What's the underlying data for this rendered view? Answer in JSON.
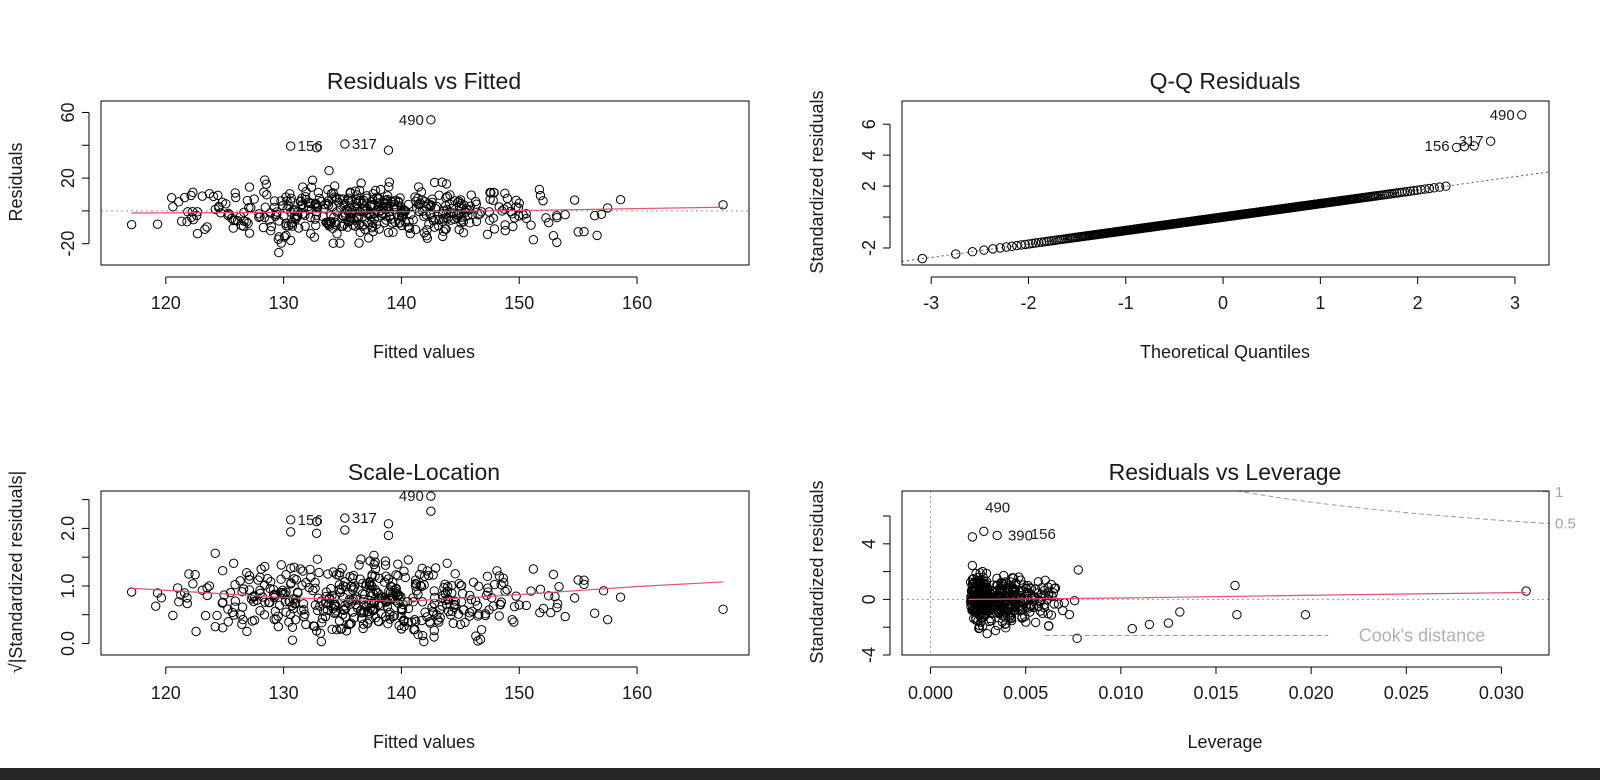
{
  "colors": {
    "points": "#000000",
    "smooth": "#df536b",
    "reference": "#9a9a9a",
    "cook": "#9a9a9a",
    "frame": "#000000"
  },
  "chart_data": [
    {
      "id": "resid_fitted",
      "type": "scatter",
      "title": "Residuals vs Fitted",
      "xlabel": "Fitted values",
      "ylabel": "Residuals",
      "xlim": [
        114.5,
        169.5
      ],
      "ylim": [
        -33,
        67
      ],
      "xticks": [
        120,
        130,
        140,
        150,
        160
      ],
      "yticks": [
        -20,
        20,
        60
      ],
      "yticks_minor": [
        0,
        40
      ],
      "refline_h": 0,
      "points": [
        [
          117.1,
          -8.4
        ],
        [
          119.3,
          -8.1
        ],
        [
          121.8,
          -6.6
        ],
        [
          123.5,
          -9.8
        ],
        [
          120.6,
          2.5
        ],
        [
          121.1,
          5.5
        ],
        [
          121.6,
          8.1
        ],
        [
          122.3,
          11.3
        ],
        [
          123.1,
          9.0
        ],
        [
          123.7,
          10.5
        ],
        [
          124.2,
          0.9
        ],
        [
          124.8,
          5.2
        ],
        [
          125.3,
          -1.5
        ],
        [
          125.9,
          -5.7
        ],
        [
          126.6,
          -9.4
        ],
        [
          127.1,
          14.5
        ],
        [
          127.5,
          7.2
        ],
        [
          128.0,
          -3.4
        ],
        [
          128.4,
          18.8
        ],
        [
          128.9,
          -12.1
        ],
        [
          129.3,
          -3.3
        ],
        [
          129.8,
          -19.6
        ],
        [
          130.2,
          8.4
        ],
        [
          130.6,
          -18.0
        ],
        [
          131.0,
          -5.2
        ],
        [
          131.5,
          3.5
        ],
        [
          131.9,
          11.7
        ],
        [
          132.3,
          -13.9
        ],
        [
          132.8,
          -0.5
        ],
        [
          133.2,
          5.7
        ],
        [
          133.6,
          -7.0
        ],
        [
          134.1,
          7.3
        ],
        [
          134.5,
          -0.6
        ],
        [
          134.9,
          -9.4
        ],
        [
          135.2,
          4.5
        ],
        [
          135.6,
          -6.2
        ],
        [
          136.0,
          2.1
        ],
        [
          136.4,
          -19.6
        ],
        [
          136.8,
          6.2
        ],
        [
          137.1,
          1.3
        ],
        [
          137.5,
          -10.3
        ],
        [
          137.9,
          8.3
        ],
        [
          138.3,
          -2.8
        ],
        [
          138.7,
          -5.6
        ],
        [
          139.0,
          -3.1
        ],
        [
          139.4,
          2.5
        ],
        [
          139.8,
          -7.4
        ],
        [
          140.2,
          -1.7
        ],
        [
          140.6,
          3.9
        ],
        [
          141.0,
          -5.5
        ],
        [
          141.4,
          7.7
        ],
        [
          141.8,
          -0.2
        ],
        [
          142.2,
          -16.7
        ],
        [
          142.6,
          -4.2
        ],
        [
          143.0,
          2.6
        ],
        [
          143.5,
          -6.5
        ],
        [
          143.9,
          8.7
        ],
        [
          144.4,
          -1.3
        ],
        [
          144.9,
          -11.4
        ],
        [
          145.3,
          3.6
        ],
        [
          145.8,
          -7.3
        ],
        [
          146.3,
          5.7
        ],
        [
          146.8,
          -0.6
        ],
        [
          147.3,
          -14.3
        ],
        [
          147.8,
          -4.4
        ],
        [
          148.3,
          2.4
        ],
        [
          148.8,
          -8.6
        ],
        [
          149.4,
          -1.8
        ],
        [
          150.0,
          4.7
        ],
        [
          150.6,
          -4.6
        ],
        [
          151.2,
          -17.6
        ],
        [
          151.8,
          9.3
        ],
        [
          152.5,
          -7.2
        ],
        [
          153.2,
          -4.1
        ],
        [
          153.9,
          -2.3
        ],
        [
          154.7,
          6.6
        ],
        [
          155.5,
          -12.7
        ],
        [
          156.4,
          -2.9
        ],
        [
          157.5,
          1.8
        ],
        [
          158.6,
          6.8
        ],
        [
          167.3,
          3.7
        ],
        [
          130.2,
          -15.0
        ],
        [
          131.8,
          -2.7
        ],
        [
          132.7,
          4.7
        ],
        [
          133.9,
          -6.6
        ],
        [
          135.1,
          -3.5
        ],
        [
          136.5,
          -13.1
        ],
        [
          137.7,
          -5.0
        ],
        [
          138.9,
          -13.2
        ],
        [
          140.1,
          -3.5
        ],
        [
          141.2,
          -11.4
        ],
        [
          142.4,
          -1.5
        ],
        [
          143.7,
          -11.1
        ],
        [
          145.1,
          -5.5
        ],
        [
          146.5,
          -2.4
        ],
        [
          147.9,
          -11.0
        ],
        [
          149.6,
          -4.3
        ],
        [
          151.0,
          -8.7
        ],
        [
          152.9,
          -15.1
        ],
        [
          155.0,
          -12.8
        ],
        [
          130.6,
          39.5
        ],
        [
          132.8,
          38.5
        ],
        [
          135.2,
          40.8
        ],
        [
          138.9,
          37.0
        ],
        [
          142.5,
          55.5
        ]
      ],
      "labels": [
        {
          "id": "490",
          "x": 142.5,
          "y": 55.5,
          "side": "left"
        },
        {
          "id": "156",
          "x": 130.6,
          "y": 39.5,
          "side": "right"
        },
        {
          "id": "317",
          "x": 135.2,
          "y": 40.8,
          "side": "right"
        }
      ],
      "smooth": [
        [
          117.1,
          -1.3
        ],
        [
          130,
          -0.9
        ],
        [
          140,
          -0.5
        ],
        [
          150,
          0.2
        ],
        [
          160,
          1.4
        ],
        [
          167.3,
          2.2
        ]
      ]
    },
    {
      "id": "qq",
      "type": "scatter",
      "title": "Q-Q Residuals",
      "xlabel": "Theoretical Quantiles",
      "ylabel": "Standardized residuals",
      "xlim": [
        -3.3,
        3.35
      ],
      "ylim": [
        -3.1,
        7.5
      ],
      "xticks": [
        -3,
        -2,
        -1,
        0,
        1,
        2,
        3
      ],
      "yticks": [
        -2,
        2,
        4,
        6
      ],
      "yticks_minor": [
        0
      ],
      "refline_slope": 0.87,
      "n": 500,
      "labels": [
        {
          "id": "490",
          "x": 3.07,
          "y": 6.6,
          "side": "left"
        },
        {
          "id": "317",
          "x": 2.75,
          "y": 4.9,
          "side": "left"
        },
        {
          "id": "156",
          "x": 2.4,
          "y": 4.6,
          "side": "left"
        }
      ],
      "outliers": [
        [
          3.07,
          6.6
        ],
        [
          2.75,
          4.9
        ],
        [
          2.58,
          4.6
        ],
        [
          2.48,
          4.55
        ],
        [
          2.4,
          4.5
        ]
      ]
    },
    {
      "id": "scale_location",
      "type": "scatter",
      "title": "Scale-Location",
      "xlabel": "Fitted values",
      "ylabel": "√|Standardized residuals|",
      "xlim": [
        114.5,
        169.5
      ],
      "ylim": [
        -0.2,
        2.65
      ],
      "xticks": [
        120,
        130,
        140,
        150,
        160
      ],
      "yticks": [
        0.0,
        1.0,
        2.0
      ],
      "yticks_minor": [
        0.5,
        1.5,
        2.5
      ],
      "labels": [
        {
          "id": "490",
          "x": 142.5,
          "y": 2.56,
          "side": "left"
        },
        {
          "id": "156",
          "x": 130.6,
          "y": 2.15,
          "side": "right"
        },
        {
          "id": "317",
          "x": 135.2,
          "y": 2.18,
          "side": "right"
        }
      ],
      "smooth": [
        [
          117.1,
          0.96
        ],
        [
          130,
          0.8
        ],
        [
          140,
          0.73
        ],
        [
          150,
          0.85
        ],
        [
          160,
          0.99
        ],
        [
          167.3,
          1.07
        ]
      ]
    },
    {
      "id": "leverage",
      "type": "scatter",
      "title": "Residuals vs Leverage",
      "xlabel": "Leverage",
      "ylabel": "Standardized residuals",
      "xlim": [
        -0.0015,
        0.0325
      ],
      "ylim": [
        -4,
        7.8
      ],
      "xticks": [
        0.0,
        0.005,
        0.01,
        0.015,
        0.02,
        0.025,
        0.03
      ],
      "xtick_labels": [
        "0.000",
        "0.005",
        "0.010",
        "0.015",
        "0.020",
        "0.025",
        "0.030"
      ],
      "yticks": [
        -4,
        0,
        4
      ],
      "yticks_minor": [
        -2,
        2,
        6
      ],
      "labels": [
        {
          "id": "490",
          "x": 0.0025,
          "y": 6.6,
          "side": "right"
        },
        {
          "id": "390",
          "x": 0.0037,
          "y": 4.6,
          "side": "right"
        },
        {
          "id": "156",
          "x": 0.0049,
          "y": 4.7,
          "side": "right"
        }
      ],
      "cook_contours": [
        {
          "label": "1",
          "level": 1
        },
        {
          "label": "0.5",
          "level": 0.5
        }
      ],
      "cook_legend": "Cook's distance",
      "extra_points": [
        [
          0.0313,
          0.6
        ],
        [
          0.0197,
          -1.1
        ],
        [
          0.0161,
          -1.1
        ],
        [
          0.016,
          1.0
        ],
        [
          0.0131,
          -0.9
        ],
        [
          0.0125,
          -1.7
        ],
        [
          0.0115,
          -1.8
        ],
        [
          0.0106,
          -2.1
        ],
        [
          0.0077,
          -2.8
        ],
        [
          0.0022,
          4.5
        ],
        [
          0.0028,
          4.9
        ],
        [
          0.0035,
          4.6
        ]
      ],
      "smooth": [
        [
          0.002,
          0.0
        ],
        [
          0.01,
          0.1
        ],
        [
          0.02,
          0.3
        ],
        [
          0.0313,
          0.5
        ]
      ]
    }
  ]
}
